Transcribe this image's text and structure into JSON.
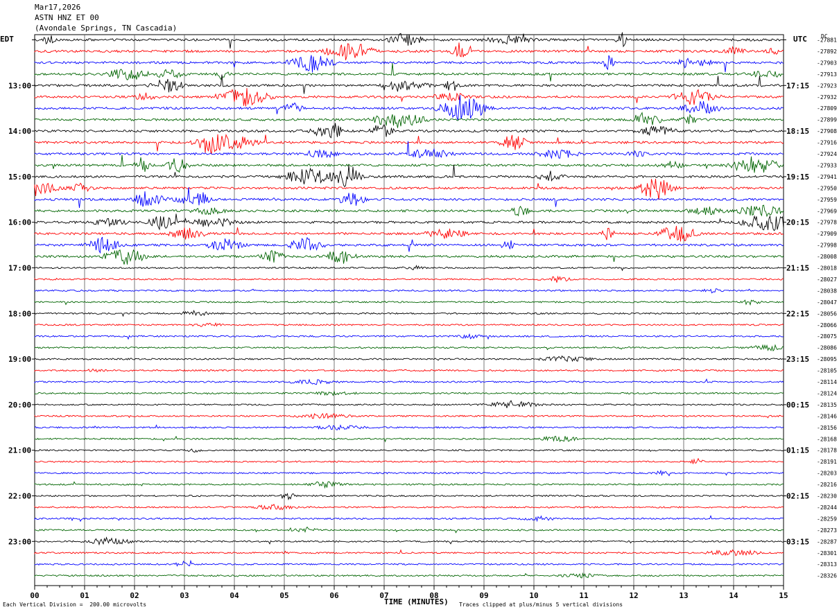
{
  "header": {
    "date": "Mar17,2026",
    "station": "ASTN HNZ ET 00",
    "location": "(Avondale Springs, TN Cascadia)"
  },
  "left_axis_title": "EDT",
  "right_axis_title": "UTC",
  "offset_header": "DC",
  "x_axis_title": "TIME (MINUTES)",
  "footer_left": "Each Vertical Division =  200.00 microvolts",
  "footer_right": "Traces clipped at plus/minus 5 vertical divisions",
  "colors": {
    "trace_cycle": [
      "#000000",
      "#ff0000",
      "#0000ff",
      "#006400"
    ],
    "grid": "#000000"
  },
  "chart_data": {
    "type": "line",
    "x_ticks": [
      "00",
      "01",
      "02",
      "03",
      "04",
      "05",
      "06",
      "07",
      "08",
      "09",
      "10",
      "11",
      "12",
      "13",
      "14",
      "15"
    ],
    "xlim": [
      0,
      15
    ],
    "left_time_labels": [
      "13:00",
      "14:00",
      "15:00",
      "16:00",
      "17:00",
      "18:00",
      "19:00",
      "20:00",
      "21:00",
      "22:00",
      "23:00"
    ],
    "right_time_labels": [
      "17:15",
      "18:15",
      "19:15",
      "20:15",
      "21:15",
      "22:15",
      "23:15",
      "00:15",
      "01:15",
      "02:15",
      "03:15"
    ],
    "trace_offsets": [
      -27881,
      -27892,
      -27903,
      -27913,
      -27923,
      -27932,
      -27809,
      -27899,
      -27908,
      -27916,
      -27924,
      -27933,
      -27941,
      -27950,
      -27959,
      -27969,
      -27978,
      -27909,
      -27998,
      -28008,
      -28018,
      -28027,
      -28038,
      -28047,
      -28056,
      -28066,
      -28075,
      -28086,
      -28095,
      -28105,
      -28114,
      -28124,
      -28135,
      -28146,
      -28156,
      -28168,
      -28178,
      -28191,
      -28203,
      -28216,
      -28230,
      -28244,
      -28259,
      -28273,
      -28287,
      -28301,
      -28313,
      -28326
    ]
  }
}
